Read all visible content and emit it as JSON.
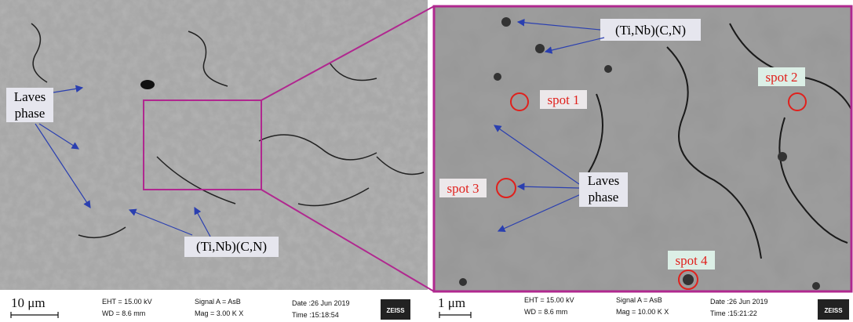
{
  "left_panel": {
    "labels": {
      "laves_phase": [
        "Laves",
        "phase"
      ],
      "carbonitride": "(Ti,Nb)(C,N)"
    },
    "info_bar": {
      "scale": "10 μm",
      "eht": "EHT = 15.00 kV",
      "wd": "WD = 8.6 mm",
      "signal": "Signal A = AsB",
      "mag": "Mag =   3.00 K X",
      "date": "Date :26 Jun 2019",
      "time": "Time :15:18:54",
      "logo": "ZEISS"
    }
  },
  "right_panel": {
    "labels": {
      "carbonitride": "(Ti,Nb)(C,N)",
      "laves_phase": [
        "Laves",
        "phase"
      ],
      "spots": [
        "spot 1",
        "spot 2",
        "spot 3",
        "spot 4"
      ]
    },
    "info_bar": {
      "scale": "1 μm",
      "eht": "EHT = 15.00 kV",
      "wd": "WD = 8.6 mm",
      "signal": "Signal A = AsB",
      "mag": "Mag =  10.00 K X",
      "date": "Date :26 Jun 2019",
      "time": "Time :15:21:22",
      "logo": "ZEISS"
    }
  }
}
